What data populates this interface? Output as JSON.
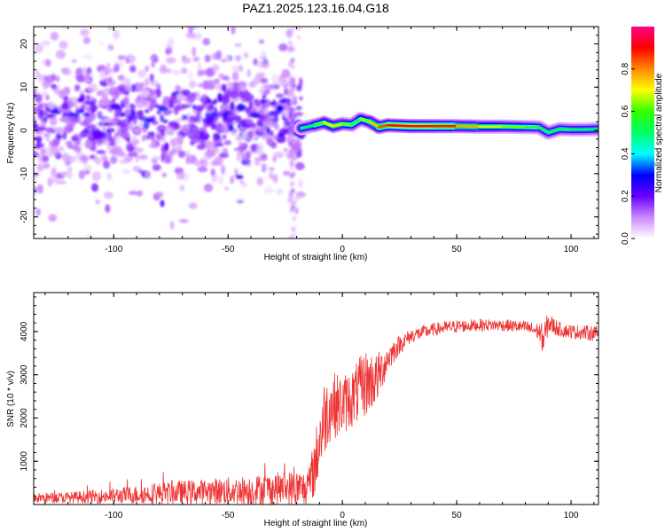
{
  "title": "PAZ1.2025.123.16.04.G18",
  "chart_data": [
    {
      "type": "heatmap",
      "title": "PAZ1.2025.123.16.04.G18",
      "xlabel": "Height of straight line (km)",
      "ylabel": "Frequency (Hz)",
      "xlim": [
        -135,
        112
      ],
      "ylim": [
        -25,
        24
      ],
      "xticks": [
        -100,
        -50,
        0,
        50,
        100
      ],
      "yticks": [
        -20,
        -10,
        0,
        10,
        20
      ],
      "colorbar": {
        "label": "Normalized spectral amplitude",
        "range": [
          0,
          1
        ],
        "ticks": [
          0.0,
          0.2,
          0.4,
          0.6,
          0.8
        ],
        "colors": [
          "#ffffff",
          "#cc88ff",
          "#6600ff",
          "#0000ff",
          "#00ffff",
          "#00ff66",
          "#33ff00",
          "#ffff00",
          "#ff8800",
          "#ff0000",
          "#ff0080"
        ]
      },
      "ridge": {
        "x": [
          -18,
          -12,
          -8,
          -4,
          0,
          4,
          8,
          12,
          16,
          20,
          30,
          40,
          50,
          60,
          70,
          80,
          86,
          90,
          95,
          100,
          105,
          112
        ],
        "frequency": [
          0.5,
          1.2,
          1.8,
          1.0,
          1.5,
          1.3,
          2.6,
          2.0,
          0.8,
          1.2,
          1.0,
          1.0,
          1.0,
          0.9,
          0.9,
          0.8,
          0.7,
          -0.5,
          0.3,
          0.2,
          0.2,
          0.3
        ],
        "amplitude": [
          0.45,
          0.55,
          0.65,
          0.75,
          0.7,
          0.55,
          0.6,
          0.7,
          0.8,
          0.9,
          0.95,
          0.92,
          0.85,
          0.7,
          0.65,
          0.6,
          0.55,
          0.5,
          0.55,
          0.5,
          0.5,
          0.5
        ]
      },
      "scatter_region": {
        "x_range": [
          -135,
          -18
        ],
        "frequency_range": [
          -25,
          24
        ],
        "center_frequency": 3,
        "amplitude_range": [
          0.0,
          0.3
        ]
      }
    },
    {
      "type": "line",
      "xlabel": "Height of straight line (km)",
      "ylabel": "SNR (10 * v/v)",
      "xlim": [
        -135,
        112
      ],
      "ylim": [
        0,
        4900
      ],
      "xticks": [
        -100,
        -50,
        0,
        50,
        100
      ],
      "yticks": [
        1000,
        2000,
        3000,
        4000
      ],
      "color": "#ee3333",
      "envelope": {
        "x": [
          -135,
          -120,
          -100,
          -80,
          -60,
          -40,
          -25,
          -15,
          -12,
          -10,
          -8,
          -5,
          0,
          5,
          10,
          15,
          20,
          25,
          30,
          40,
          50,
          60,
          70,
          80,
          86,
          88,
          90,
          95,
          100,
          105,
          112
        ],
        "mean": [
          150,
          160,
          200,
          260,
          300,
          330,
          380,
          350,
          900,
          1500,
          2000,
          2300,
          2300,
          2500,
          2800,
          2900,
          3400,
          3700,
          3900,
          4050,
          4120,
          4150,
          4150,
          4100,
          4000,
          3800,
          4200,
          4050,
          4000,
          3980,
          3950
        ],
        "spread": [
          120,
          130,
          180,
          250,
          300,
          350,
          400,
          450,
          700,
          900,
          900,
          800,
          700,
          700,
          800,
          600,
          350,
          220,
          170,
          150,
          150,
          140,
          140,
          150,
          200,
          400,
          250,
          170,
          170,
          170,
          180
        ]
      }
    }
  ]
}
